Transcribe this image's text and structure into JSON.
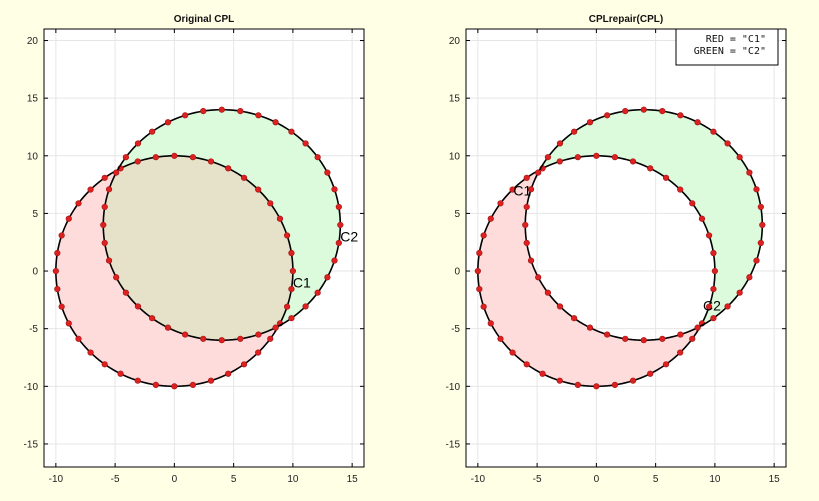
{
  "chart_data": [
    {
      "type": "area",
      "title": "Original CPL",
      "xlim": [
        -11,
        16
      ],
      "ylim": [
        -17,
        21
      ],
      "xticks": [
        -10,
        -5,
        0,
        5,
        10,
        15
      ],
      "yticks": [
        -15,
        -10,
        -5,
        0,
        5,
        10,
        15,
        20
      ],
      "grid": true,
      "mode": "original",
      "series": [
        {
          "name": "C1",
          "shape": "ellipse",
          "cx": 0,
          "cy": 0,
          "rx": 10,
          "ry": 10,
          "fill": "#ffdcdc",
          "points": 40
        },
        {
          "name": "C2",
          "shape": "ellipse",
          "cx": 4,
          "cy": 4,
          "rx": 10,
          "ry": 10,
          "fill": "#dcfadc",
          "points": 40
        }
      ],
      "overlap_fill": "#e5e2c9",
      "annotations": [
        {
          "text": "C2",
          "x": 14,
          "y": 3
        },
        {
          "text": "C1",
          "x": 10,
          "y": -1
        }
      ]
    },
    {
      "type": "area",
      "title": "CPLrepair(CPL)",
      "xlim": [
        -11,
        16
      ],
      "ylim": [
        -17,
        21
      ],
      "xticks": [
        -10,
        -5,
        0,
        5,
        10,
        15
      ],
      "yticks": [
        -15,
        -10,
        -5,
        0,
        5,
        10,
        15,
        20
      ],
      "grid": true,
      "mode": "repaired",
      "series": [
        {
          "name": "C1",
          "shape": "ellipse",
          "cx": 0,
          "cy": 0,
          "rx": 10,
          "ry": 10,
          "fill": "#ffdcdc",
          "points": 40
        },
        {
          "name": "C2",
          "shape": "ellipse",
          "cx": 4,
          "cy": 4,
          "rx": 10,
          "ry": 10,
          "fill": "#dcfadc",
          "points": 40
        }
      ],
      "annotations": [
        {
          "text": "C1",
          "x": -7,
          "y": 7
        },
        {
          "text": "C2",
          "x": 9,
          "y": -3
        }
      ],
      "legend": {
        "placement": "top-right",
        "lines": [
          "RED = \"C1\"",
          "GREEN = \"C2\""
        ]
      }
    }
  ],
  "colors": {
    "background": "#ffffe6",
    "axes_bg": "#ffffff",
    "grid": "#e6e6e6",
    "outline": "#000000",
    "marker": "#dd2020"
  }
}
